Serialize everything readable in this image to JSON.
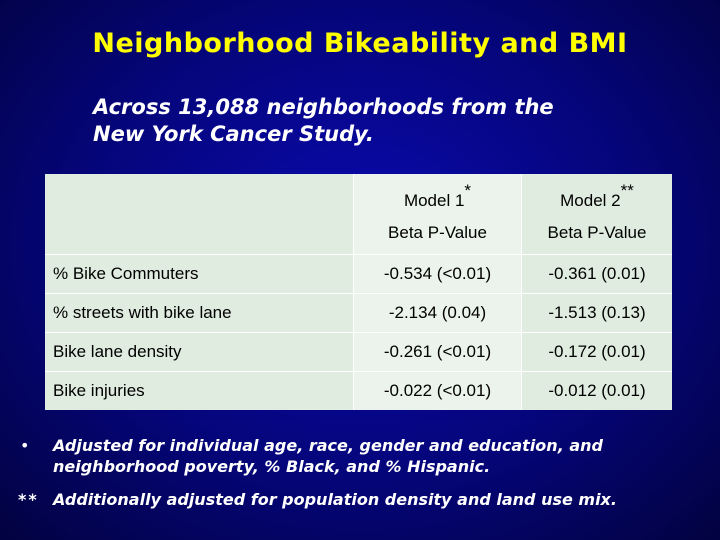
{
  "slide": {
    "title": "Neighborhood Bikeability and BMI",
    "subtitle_lines": [
      "Across 13,088 neighborhoods from the",
      "New York Cancer Study."
    ]
  },
  "table": {
    "headers": [
      {
        "model": "Model 1",
        "superscript": "*",
        "stat": "Beta P-Value"
      },
      {
        "model": "Model  2",
        "superscript": "**",
        "stat": "Beta P-Value"
      }
    ],
    "rows": [
      {
        "label": "% Bike Commuters",
        "model1": "-0.534 (<0.01)",
        "model2": "-0.361 (0.01)"
      },
      {
        "label": "% streets with bike lane",
        "model1": "-2.134 (0.04)",
        "model2": "-1.513 (0.13)"
      },
      {
        "label": "Bike lane density",
        "model1": "-0.261 (<0.01)",
        "model2": "-0.172 (0.01)"
      },
      {
        "label": "Bike injuries",
        "model1": "-0.022 (<0.01)",
        "model2": "-0.012 (0.01)"
      }
    ]
  },
  "footnotes": [
    {
      "marker": "•",
      "lines": [
        "Adjusted for individual age, race, gender and education, and",
        "neighborhood poverty, % Black, and % Hispanic."
      ]
    },
    {
      "marker": "**",
      "lines": [
        "Additionally adjusted for population density and land use mix."
      ]
    }
  ]
}
